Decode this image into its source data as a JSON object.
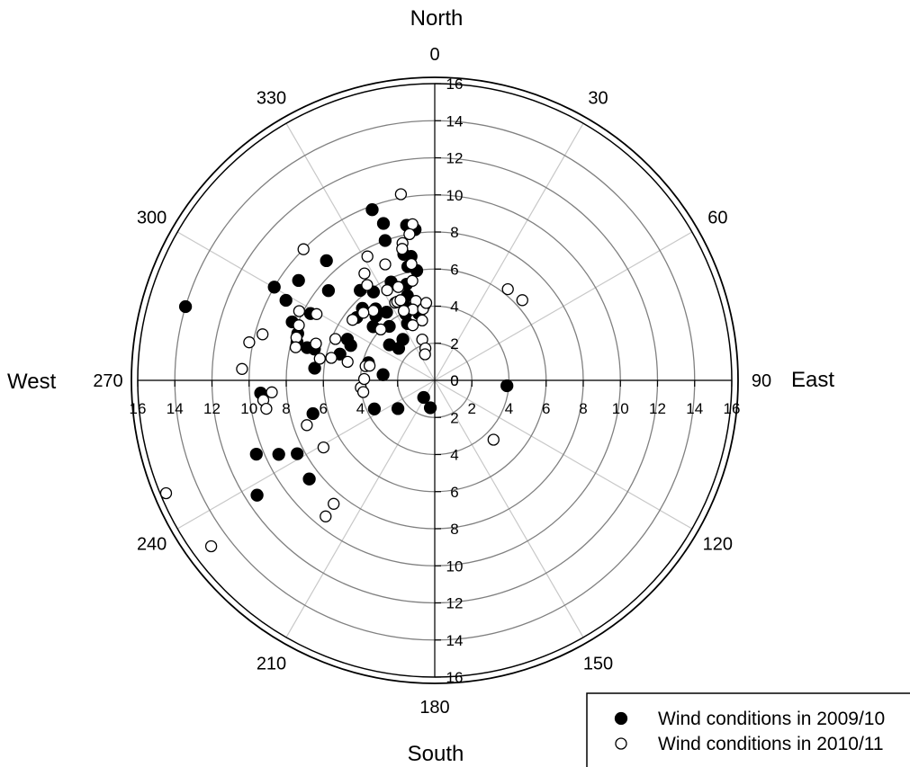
{
  "chart_data": {
    "type": "scatter",
    "subtype": "polar",
    "radial_range": [
      0,
      16
    ],
    "radial_ticks": [
      0,
      2,
      4,
      6,
      8,
      10,
      12,
      14,
      16
    ],
    "angle_ticks": [
      "0",
      "30",
      "60",
      "90",
      "120",
      "150",
      "180",
      "210",
      "240",
      "270",
      "300",
      "330"
    ],
    "direction_labels": {
      "north": "North",
      "east": "East",
      "south": "South",
      "west": "West"
    },
    "angle_direction": "clockwise from north",
    "grid": true,
    "legend_position": "bottom-right",
    "series": [
      {
        "name": "Wind conditions in 2009/10",
        "marker": "filled-circle",
        "points": [
          {
            "angle": 339.9,
            "r": 9.8
          },
          {
            "angle": 341.9,
            "r": 8.9
          },
          {
            "angle": 340.5,
            "r": 8.0
          },
          {
            "angle": 346.2,
            "r": 7.0
          },
          {
            "angle": 349.2,
            "r": 6.8
          },
          {
            "angle": 350.7,
            "r": 6.0
          },
          {
            "angle": 343.7,
            "r": 5.4
          },
          {
            "angle": 342.1,
            "r": 4.8
          },
          {
            "angle": 340.5,
            "r": 4.1
          },
          {
            "angle": 337.7,
            "r": 4.5
          },
          {
            "angle": 336.4,
            "r": 3.9
          },
          {
            "angle": 334.4,
            "r": 3.4
          },
          {
            "angle": 349.7,
            "r": 8.5
          },
          {
            "angle": 352.6,
            "r": 8.2
          },
          {
            "angle": 346.7,
            "r": 6.3
          },
          {
            "angle": 346.6,
            "r": 3.7
          },
          {
            "angle": 352.2,
            "r": 4.1
          },
          {
            "angle": 336.1,
            "r": 5.8
          },
          {
            "angle": 324.8,
            "r": 4.5
          },
          {
            "angle": 311.1,
            "r": 4.4
          },
          {
            "angle": 319.9,
            "r": 3.8
          },
          {
            "angle": 320.4,
            "r": 6.3
          },
          {
            "angle": 314.9,
            "r": 5.5
          },
          {
            "angle": 320.4,
            "r": 5.0
          },
          {
            "angle": 317.6,
            "r": 4.7
          },
          {
            "angle": 322.2,
            "r": 2.8
          },
          {
            "angle": 311.6,
            "r": 2.6
          },
          {
            "angle": 308.1,
            "r": 3.1
          },
          {
            "angle": 317.9,
            "r": 8.7
          },
          {
            "angle": 306.3,
            "r": 9.1
          },
          {
            "angle": 300.2,
            "r": 10.0
          },
          {
            "angle": 310.2,
            "r": 7.5
          },
          {
            "angle": 298.3,
            "r": 9.1
          },
          {
            "angle": 298.3,
            "r": 7.6
          },
          {
            "angle": 288.9,
            "r": 7.8
          },
          {
            "angle": 292.3,
            "r": 8.3
          },
          {
            "angle": 285.5,
            "r": 7.7
          },
          {
            "angle": 284.4,
            "r": 7.1
          },
          {
            "angle": 284.6,
            "r": 6.7
          },
          {
            "angle": 285.5,
            "r": 5.3
          },
          {
            "angle": 284.9,
            "r": 3.7
          },
          {
            "angle": 292.6,
            "r": 4.9
          },
          {
            "angle": 295.2,
            "r": 5.2
          },
          {
            "angle": 308.9,
            "r": 5.4
          },
          {
            "angle": 325.3,
            "r": 5.8
          },
          {
            "angle": 286.5,
            "r": 14.0
          },
          {
            "angle": 275.8,
            "r": 6.5
          },
          {
            "angle": 276.3,
            "r": 2.8
          },
          {
            "angle": 247.5,
            "r": 10.4
          },
          {
            "angle": 265.8,
            "r": 9.4
          },
          {
            "angle": 244.6,
            "r": 9.3
          },
          {
            "angle": 237.1,
            "r": 11.4
          },
          {
            "angle": 231.8,
            "r": 8.6
          },
          {
            "angle": 241.9,
            "r": 8.4
          },
          {
            "angle": 254.7,
            "r": 6.8
          },
          {
            "angle": 244.6,
            "r": 3.6
          },
          {
            "angle": 232.5,
            "r": 2.5
          },
          {
            "angle": 212.9,
            "r": 1.1
          },
          {
            "angle": 189.2,
            "r": 1.5
          },
          {
            "angle": 94.3,
            "r": 3.9
          }
        ]
      },
      {
        "name": "Wind conditions in 2010/11",
        "marker": "open-circle",
        "points": [
          {
            "angle": 349.7,
            "r": 10.2
          },
          {
            "angle": 351.9,
            "r": 8.5
          },
          {
            "angle": 350.2,
            "r": 8.0
          },
          {
            "angle": 346.8,
            "r": 7.6
          },
          {
            "angle": 346.1,
            "r": 7.3
          },
          {
            "angle": 348.7,
            "r": 6.4
          },
          {
            "angle": 347.3,
            "r": 5.5
          },
          {
            "angle": 346.6,
            "r": 4.4
          },
          {
            "angle": 348.1,
            "r": 3.3
          },
          {
            "angle": 336.9,
            "r": 6.8
          },
          {
            "angle": 331.5,
            "r": 7.6
          },
          {
            "angle": 326.7,
            "r": 6.9
          },
          {
            "angle": 332.2,
            "r": 5.5
          },
          {
            "angle": 338.7,
            "r": 5.4
          },
          {
            "angle": 333.0,
            "r": 4.7
          },
          {
            "angle": 334.5,
            "r": 4.7
          },
          {
            "angle": 336.9,
            "r": 4.7
          },
          {
            "angle": 342.8,
            "r": 4.0
          },
          {
            "angle": 336.0,
            "r": 4.1
          },
          {
            "angle": 338.2,
            "r": 3.2
          },
          {
            "angle": 350.7,
            "r": 3.9
          },
          {
            "angle": 353.7,
            "r": 4.2
          },
          {
            "angle": 343.0,
            "r": 2.3
          },
          {
            "angle": 343.7,
            "r": 1.8
          },
          {
            "angle": 339.6,
            "r": 1.5
          },
          {
            "angle": 324.7,
            "r": 6.3
          },
          {
            "angle": 318.6,
            "r": 5.0
          },
          {
            "angle": 313.5,
            "r": 5.3
          },
          {
            "angle": 313.3,
            "r": 4.0
          },
          {
            "angle": 306.4,
            "r": 5.5
          },
          {
            "angle": 299.3,
            "r": 7.3
          },
          {
            "angle": 297.1,
            "r": 8.2
          },
          {
            "angle": 292.1,
            "r": 7.9
          },
          {
            "angle": 292.6,
            "r": 5.8
          },
          {
            "angle": 287.2,
            "r": 7.8
          },
          {
            "angle": 283.4,
            "r": 7.7
          },
          {
            "angle": 287.2,
            "r": 6.7
          },
          {
            "angle": 280.7,
            "r": 6.3
          },
          {
            "angle": 282.3,
            "r": 5.7
          },
          {
            "angle": 282.0,
            "r": 4.8
          },
          {
            "angle": 281.6,
            "r": 3.8
          },
          {
            "angle": 282.7,
            "r": 3.6
          },
          {
            "angle": 281.6,
            "r": 10.2
          },
          {
            "angle": 285.0,
            "r": 9.6
          },
          {
            "angle": 273.4,
            "r": 10.4
          },
          {
            "angle": 263.4,
            "r": 9.3
          },
          {
            "angle": 260.4,
            "r": 9.2
          },
          {
            "angle": 265.8,
            "r": 8.8
          },
          {
            "angle": 250.7,
            "r": 7.3
          },
          {
            "angle": 264.4,
            "r": 4.0
          },
          {
            "angle": 260.7,
            "r": 3.9
          },
          {
            "angle": 271.1,
            "r": 3.8
          },
          {
            "angle": 238.9,
            "r": 7.0
          },
          {
            "angle": 219.3,
            "r": 8.6
          },
          {
            "angle": 218.7,
            "r": 9.4
          },
          {
            "angle": 247.2,
            "r": 15.7
          },
          {
            "angle": 233.4,
            "r": 15.0
          },
          {
            "angle": 47.5,
            "r": 6.4
          },
          {
            "angle": 38.7,
            "r": 6.3
          },
          {
            "angle": 135.3,
            "r": 4.5
          },
          {
            "angle": 315.0,
            "r": 10.0
          }
        ]
      }
    ]
  }
}
